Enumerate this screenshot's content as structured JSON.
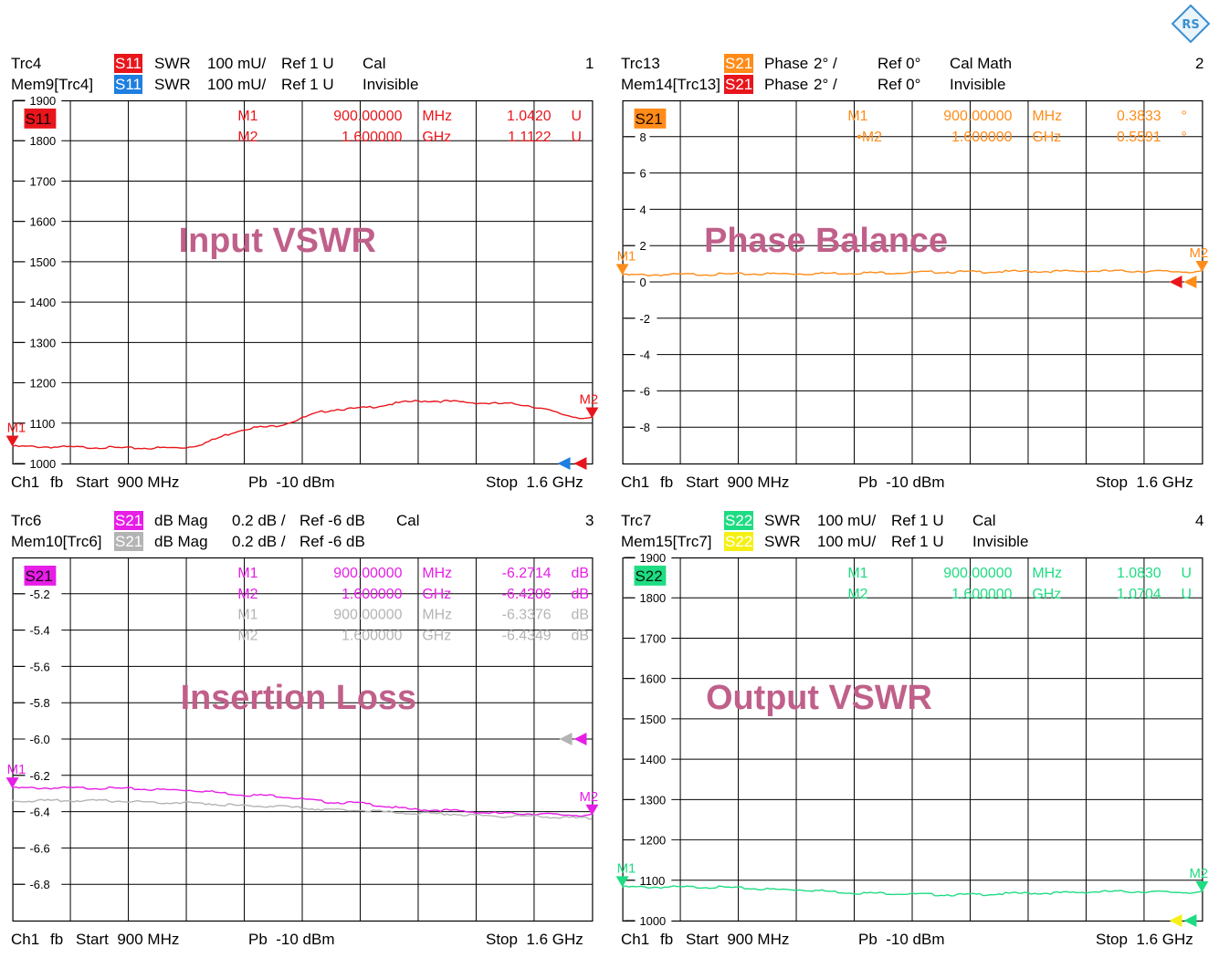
{
  "panels": [
    {
      "id": 1,
      "header_lines": [
        {
          "trace": "Trc4",
          "badge": "S11",
          "badge_bg": "#e8161c",
          "badge_fg": "#ffffff",
          "format": "SWR",
          "scale": "100 mU/",
          "ref": "Ref 1 U",
          "state": "Cal"
        },
        {
          "trace": "Mem9[Trc4]",
          "badge": "S11",
          "badge_bg": "#1e7fe0",
          "badge_fg": "#ffffff",
          "format": "SWR",
          "scale": "100 mU/",
          "ref": "Ref 1 U",
          "state": "Invisible"
        }
      ],
      "window_number": "1",
      "legend_badge": {
        "label": "S11",
        "bg": "#e8161c",
        "fg": "#1a0000"
      },
      "overlay_label": "Input VSWR",
      "overlay_color": "#c0608a",
      "footer": {
        "channel": "Ch1",
        "mode": "fb",
        "start": "Start  900 MHz",
        "power": "Pb  -10 dBm",
        "stop": "Stop  1.6 GHz"
      },
      "marker_table": [
        {
          "name": "M1",
          "freq": "900.00000",
          "unit": "MHz",
          "value": "1.0420",
          "vunit": "U",
          "color": "#e8161c"
        },
        {
          "name": "M2",
          "freq": "1.600000",
          "unit": "GHz",
          "value": "1.1122",
          "vunit": "U",
          "color": "#e8161c"
        }
      ],
      "chart_data": {
        "type": "line",
        "x_range": [
          0.9,
          1.6
        ],
        "x_unit": "GHz",
        "ylim": [
          1000,
          1900
        ],
        "y_ticks": [
          1000,
          1100,
          1200,
          1300,
          1400,
          1500,
          1600,
          1700,
          1800,
          1900
        ],
        "y_ticklabels": [
          "1000",
          "1100",
          "1200",
          "1300",
          "1400",
          "1500",
          "1600",
          "1700",
          "1800",
          "1900"
        ],
        "ref_value": 1000,
        "series": [
          {
            "color": "#e8161c",
            "x": [
              0.9,
              1.0,
              1.05,
              1.1,
              1.2,
              1.3,
              1.4,
              1.5,
              1.6
            ],
            "y": [
              1042,
              1040,
              1038,
              1039,
              1090,
              1135,
              1155,
              1148,
              1112
            ]
          }
        ],
        "markers": [
          {
            "label": "M1",
            "x": 0.9,
            "y": 1042,
            "color": "#e8161c"
          },
          {
            "label": "M2",
            "x": 1.6,
            "y": 1112,
            "color": "#e8161c"
          }
        ],
        "ref_arrows": [
          {
            "color": "#1e7fe0",
            "y": 1000,
            "offset": 24
          },
          {
            "color": "#e8161c",
            "y": 1000,
            "offset": 6
          }
        ]
      }
    },
    {
      "id": 2,
      "header_lines": [
        {
          "trace": "Trc13",
          "badge": "S21",
          "badge_bg": "#ff8c19",
          "badge_fg": "#ffffff",
          "format": "Phase",
          "scale": "2° /",
          "ref": "Ref 0°",
          "state": "Cal Math"
        },
        {
          "trace": "Mem14[Trc13]",
          "badge": "S21",
          "badge_bg": "#e8161c",
          "badge_fg": "#ffffff",
          "format": "Phase",
          "scale": "2° /",
          "ref": "Ref 0°",
          "state": "Invisible"
        }
      ],
      "window_number": "2",
      "legend_badge": {
        "label": "S21",
        "bg": "#ff8c19",
        "fg": "#1a0a00"
      },
      "overlay_label": "Phase Balance",
      "overlay_color": "#c0608a",
      "footer": {
        "channel": "Ch1",
        "mode": "fb",
        "start": "Start  900 MHz",
        "power": "Pb  -10 dBm",
        "stop": "Stop  1.6 GHz"
      },
      "marker_table": [
        {
          "name": "M1",
          "freq": "900.00000",
          "unit": "MHz",
          "value": "0.3833",
          "vunit": "°",
          "color": "#ff8c19"
        },
        {
          "name": "•M2",
          "freq": "1.600000",
          "unit": "GHz",
          "value": "0.5591",
          "vunit": "°",
          "color": "#ff8c19"
        }
      ],
      "chart_data": {
        "type": "line",
        "x_range": [
          0.9,
          1.6
        ],
        "x_unit": "GHz",
        "ylim": [
          -10,
          10
        ],
        "y_ticks": [
          -10,
          -8,
          -6,
          -4,
          -2,
          0,
          2,
          4,
          6,
          8,
          10
        ],
        "y_ticklabels": [
          "",
          "-8",
          "-6",
          "-4",
          "-2",
          "0",
          "2",
          "4",
          "6",
          "8",
          ""
        ],
        "ref_value": 0,
        "series": [
          {
            "color": "#ff8c19",
            "x": [
              0.9,
              1.0,
              1.1,
              1.2,
              1.3,
              1.4,
              1.5,
              1.6
            ],
            "y": [
              0.38,
              0.42,
              0.45,
              0.5,
              0.55,
              0.58,
              0.6,
              0.56
            ]
          }
        ],
        "markers": [
          {
            "label": "M1",
            "x": 0.9,
            "y": 0.3833,
            "color": "#ff8c19"
          },
          {
            "label": "M2",
            "x": 1.6,
            "y": 0.5591,
            "color": "#ff8c19"
          }
        ],
        "ref_arrows": [
          {
            "color": "#e8161c",
            "y": 0,
            "offset": 22
          },
          {
            "color": "#ff8c19",
            "y": 0,
            "offset": 6
          }
        ]
      }
    },
    {
      "id": 3,
      "header_lines": [
        {
          "trace": "Trc6",
          "badge": "S21",
          "badge_bg": "#e61ee6",
          "badge_fg": "#ffffff",
          "format": "dB Mag",
          "scale": "0.2 dB /",
          "ref": "Ref -6 dB",
          "state": "Cal"
        },
        {
          "trace": "Mem10[Trc6]",
          "badge": "S21",
          "badge_bg": "#b4b4b4",
          "badge_fg": "#ffffff",
          "format": "dB Mag",
          "scale": "0.2 dB /",
          "ref": "Ref -6 dB",
          "state": ""
        }
      ],
      "window_number": "3",
      "legend_badge": {
        "label": "S21",
        "bg": "#e61ee6",
        "fg": "#1a001a"
      },
      "overlay_label": "Insertion Loss",
      "overlay_color": "#c0608a",
      "footer": {
        "channel": "Ch1",
        "mode": "fb",
        "start": "Start  900 MHz",
        "power": "Pb  -10 dBm",
        "stop": "Stop  1.6 GHz"
      },
      "marker_table": [
        {
          "name": "M1",
          "freq": "900.00000",
          "unit": "MHz",
          "value": "-6.2714",
          "vunit": "dB",
          "color": "#e61ee6"
        },
        {
          "name": "M2",
          "freq": "1.600000",
          "unit": "GHz",
          "value": "-6.4206",
          "vunit": "dB",
          "color": "#e61ee6"
        },
        {
          "name": "M1",
          "freq": "900.00000",
          "unit": "MHz",
          "value": "-6.3376",
          "vunit": "dB",
          "color": "#b4b4b4"
        },
        {
          "name": "M2",
          "freq": "1.600000",
          "unit": "GHz",
          "value": "-6.4349",
          "vunit": "dB",
          "color": "#b4b4b4"
        }
      ],
      "chart_data": {
        "type": "line",
        "x_range": [
          0.9,
          1.6
        ],
        "x_unit": "GHz",
        "ylim": [
          -7.0,
          -5.0
        ],
        "y_ticks": [
          -7.0,
          -6.8,
          -6.6,
          -6.4,
          -6.2,
          -6.0,
          -5.8,
          -5.6,
          -5.4,
          -5.2,
          -5.0
        ],
        "y_ticklabels": [
          "",
          "-6.8",
          "-6.6",
          "-6.4",
          "-6.2",
          "-6.0",
          "-5.8",
          "-5.6",
          "-5.4",
          "-5.2",
          ""
        ],
        "ref_value": -6.0,
        "series": [
          {
            "color": "#e61ee6",
            "x": [
              0.9,
              1.0,
              1.1,
              1.2,
              1.3,
              1.4,
              1.5,
              1.6
            ],
            "y": [
              -6.27,
              -6.27,
              -6.28,
              -6.31,
              -6.35,
              -6.39,
              -6.41,
              -6.42
            ]
          },
          {
            "color": "#b4b4b4",
            "x": [
              0.9,
              1.0,
              1.1,
              1.2,
              1.3,
              1.4,
              1.5,
              1.6
            ],
            "y": [
              -6.34,
              -6.34,
              -6.35,
              -6.37,
              -6.39,
              -6.41,
              -6.425,
              -6.435
            ]
          }
        ],
        "markers": [
          {
            "label": "M1",
            "x": 0.9,
            "y": -6.2714,
            "color": "#e61ee6"
          },
          {
            "label": "M2",
            "x": 1.6,
            "y": -6.4206,
            "color": "#e61ee6"
          }
        ],
        "ref_arrows": [
          {
            "color": "#b4b4b4",
            "y": -6.0,
            "offset": 22
          },
          {
            "color": "#e61ee6",
            "y": -6.0,
            "offset": 6
          }
        ]
      }
    },
    {
      "id": 4,
      "header_lines": [
        {
          "trace": "Trc7",
          "badge": "S22",
          "badge_bg": "#1edc82",
          "badge_fg": "#ffffff",
          "format": "SWR",
          "scale": "100 mU/",
          "ref": "Ref 1 U",
          "state": "Cal"
        },
        {
          "trace": "Mem15[Trc7]",
          "badge": "S22",
          "badge_bg": "#f5f014",
          "badge_fg": "#ffffff",
          "format": "SWR",
          "scale": "100 mU/",
          "ref": "Ref 1 U",
          "state": "Invisible"
        }
      ],
      "window_number": "4",
      "legend_badge": {
        "label": "S22",
        "bg": "#1edc82",
        "fg": "#001a0a"
      },
      "overlay_label": "Output VSWR",
      "overlay_color": "#c0608a",
      "footer": {
        "channel": "Ch1",
        "mode": "fb",
        "start": "Start  900 MHz",
        "power": "Pb  -10 dBm",
        "stop": "Stop  1.6 GHz"
      },
      "marker_table": [
        {
          "name": "M1",
          "freq": "900.00000",
          "unit": "MHz",
          "value": "1.0830",
          "vunit": "U",
          "color": "#1edc82"
        },
        {
          "name": "M2",
          "freq": "1.600000",
          "unit": "GHz",
          "value": "1.0704",
          "vunit": "U",
          "color": "#1edc82"
        }
      ],
      "chart_data": {
        "type": "line",
        "x_range": [
          0.9,
          1.6
        ],
        "x_unit": "GHz",
        "ylim": [
          1000,
          1900
        ],
        "y_ticks": [
          1000,
          1100,
          1200,
          1300,
          1400,
          1500,
          1600,
          1700,
          1800,
          1900
        ],
        "y_ticklabels": [
          "1000",
          "1100",
          "1200",
          "1300",
          "1400",
          "1500",
          "1600",
          "1700",
          "1800",
          "1900"
        ],
        "ref_value": 1000,
        "series": [
          {
            "color": "#1edc82",
            "x": [
              0.9,
              1.0,
              1.1,
              1.2,
              1.3,
              1.4,
              1.5,
              1.6
            ],
            "y": [
              1083,
              1083,
              1077,
              1068,
              1064,
              1068,
              1072,
              1070
            ]
          }
        ],
        "markers": [
          {
            "label": "M1",
            "x": 0.9,
            "y": 1083,
            "color": "#1edc82"
          },
          {
            "label": "M2",
            "x": 1.6,
            "y": 1070.4,
            "color": "#1edc82"
          }
        ],
        "ref_arrows": [
          {
            "color": "#f5f014",
            "y": 1000,
            "offset": 22
          },
          {
            "color": "#1edc82",
            "y": 1000,
            "offset": 6
          }
        ]
      }
    }
  ]
}
